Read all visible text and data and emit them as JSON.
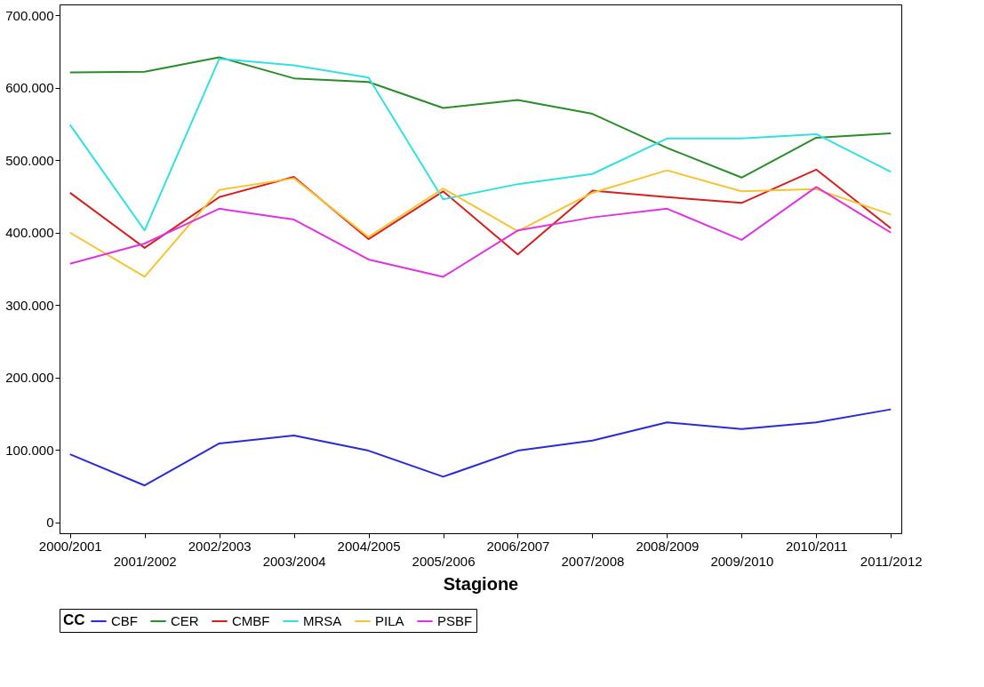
{
  "chart_data": {
    "type": "line",
    "xlabel": "Stagione",
    "legend_title": "CC",
    "legend": "bottom",
    "grid": false,
    "categories": [
      "2000/2001",
      "2001/2002",
      "2002/2003",
      "2003/2004",
      "2004/2005",
      "2005/2006",
      "2006/2007",
      "2007/2008",
      "2008/2009",
      "2009/2010",
      "2010/2011",
      "2011/2012"
    ],
    "ylim": [
      -15000,
      715000
    ],
    "yticks": [
      0,
      {
        "value": 100000,
        "label": "100.000"
      },
      {
        "value": 200000,
        "label": "200.000"
      },
      {
        "value": 300000,
        "label": "300.000"
      },
      {
        "value": 400000,
        "label": "400.000"
      },
      {
        "value": 500000,
        "label": "500.000"
      },
      {
        "value": 600000,
        "label": "600.000"
      },
      {
        "value": 700000,
        "label": "700.000"
      }
    ],
    "series": [
      {
        "name": "CBF",
        "color": "#2b2bd6",
        "values": [
          94000,
          51000,
          109000,
          120000,
          99000,
          63000,
          99000,
          113000,
          138000,
          129000,
          138000,
          156000
        ]
      },
      {
        "name": "CER",
        "color": "#2a8c2a",
        "values": [
          621000,
          622000,
          642000,
          613000,
          608000,
          572000,
          583000,
          564000,
          517000,
          476000,
          531000,
          537000
        ]
      },
      {
        "name": "CMBF",
        "color": "#d62020",
        "values": [
          455000,
          379000,
          449000,
          477000,
          391000,
          457000,
          370000,
          458000,
          449000,
          441000,
          487000,
          406000
        ]
      },
      {
        "name": "MRSA",
        "color": "#33e0e0",
        "values": [
          549000,
          403000,
          640000,
          631000,
          614000,
          446000,
          467000,
          481000,
          530000,
          530000,
          536000,
          484000
        ]
      },
      {
        "name": "PILA",
        "color": "#f5c431",
        "values": [
          400000,
          339000,
          459000,
          475000,
          394000,
          461000,
          402000,
          455000,
          486000,
          457000,
          460000,
          425000
        ]
      },
      {
        "name": "PSBF",
        "color": "#e033e0",
        "values": [
          357000,
          385000,
          433000,
          418000,
          363000,
          339000,
          403000,
          421000,
          433000,
          390000,
          463000,
          400000
        ]
      }
    ]
  }
}
